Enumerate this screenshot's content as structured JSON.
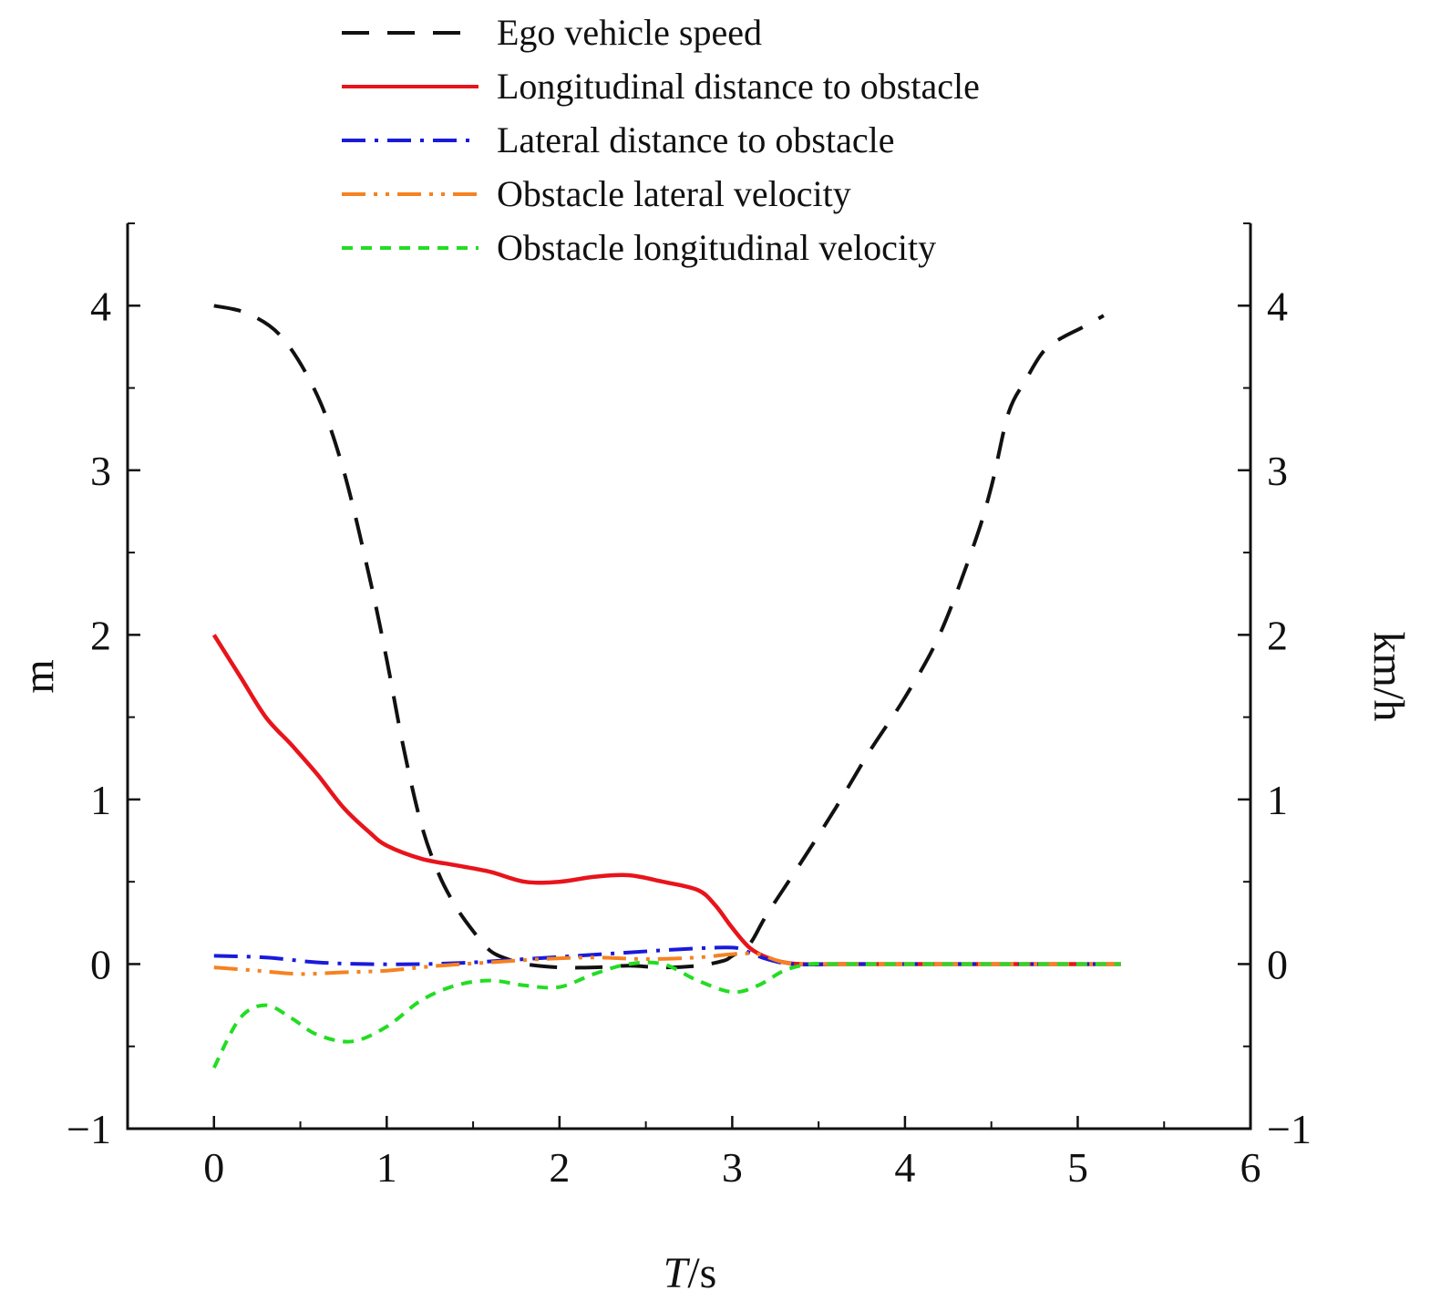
{
  "chart_data": {
    "type": "line",
    "title": "",
    "xlabel": {
      "italic": "T",
      "rest": "/s"
    },
    "ylabel_left": "m",
    "ylabel_right": "km/h",
    "xlim": [
      -0.5,
      6
    ],
    "ylim": [
      -1,
      4.5
    ],
    "x_ticks": [
      0,
      1,
      2,
      3,
      4,
      5,
      6
    ],
    "x_tick_labels": [
      "0",
      "1",
      "2",
      "3",
      "4",
      "5",
      "6"
    ],
    "y_ticks": [
      -1,
      0,
      1,
      2,
      3,
      4
    ],
    "y_tick_labels": [
      "−1",
      "0",
      "1",
      "2",
      "3",
      "4"
    ],
    "legend_position": "top-center",
    "series": [
      {
        "name": "Ego vehicle speed",
        "color": "#111111",
        "style": "dashed",
        "x": [
          0,
          0.2,
          0.4,
          0.6,
          0.75,
          0.9,
          1.0,
          1.1,
          1.2,
          1.3,
          1.4,
          1.5,
          1.6,
          1.7,
          1.8,
          2.0,
          2.2,
          2.4,
          2.6,
          2.8,
          2.95,
          3.0,
          3.1,
          3.2,
          3.4,
          3.6,
          3.8,
          4.0,
          4.2,
          4.4,
          4.5,
          4.6,
          4.7,
          4.8,
          4.9,
          5.05,
          5.15
        ],
        "values": [
          4.0,
          3.95,
          3.8,
          3.45,
          3.0,
          2.35,
          1.85,
          1.3,
          0.85,
          0.55,
          0.35,
          0.2,
          0.08,
          0.03,
          0.0,
          -0.02,
          -0.02,
          -0.01,
          -0.02,
          -0.01,
          0.02,
          0.05,
          0.12,
          0.3,
          0.62,
          0.95,
          1.3,
          1.62,
          2.0,
          2.55,
          2.9,
          3.35,
          3.55,
          3.72,
          3.8,
          3.88,
          3.94
        ]
      },
      {
        "name": "Longitudinal distance to obstacle",
        "color": "#e8141b",
        "style": "solid",
        "x": [
          0,
          0.15,
          0.3,
          0.45,
          0.6,
          0.75,
          0.9,
          1.0,
          1.2,
          1.4,
          1.6,
          1.8,
          2.0,
          2.2,
          2.4,
          2.6,
          2.8,
          2.9,
          3.0,
          3.1,
          3.2,
          3.3,
          3.4,
          3.6,
          4.0,
          4.5,
          5.0,
          5.25
        ],
        "values": [
          2.0,
          1.75,
          1.5,
          1.33,
          1.15,
          0.95,
          0.8,
          0.72,
          0.64,
          0.6,
          0.56,
          0.5,
          0.5,
          0.53,
          0.54,
          0.5,
          0.45,
          0.36,
          0.22,
          0.1,
          0.04,
          0.01,
          0.0,
          0.0,
          0.0,
          0.0,
          0.0,
          0.0
        ]
      },
      {
        "name": "Lateral distance to obstacle",
        "color": "#1a1adb",
        "style": "dashdot",
        "x": [
          0,
          0.3,
          0.6,
          0.9,
          1.2,
          1.5,
          1.8,
          2.1,
          2.4,
          2.7,
          3.0,
          3.1,
          3.2,
          3.35,
          3.6,
          4.0,
          4.5,
          5.0,
          5.25
        ],
        "values": [
          0.05,
          0.04,
          0.01,
          0.0,
          0.0,
          0.01,
          0.03,
          0.05,
          0.07,
          0.09,
          0.1,
          0.07,
          0.03,
          0.0,
          0.0,
          0.0,
          0.0,
          0.0,
          0.0
        ]
      },
      {
        "name": "Obstacle lateral velocity",
        "color": "#f58220",
        "style": "dashdotdot",
        "x": [
          0,
          0.25,
          0.5,
          0.75,
          1.0,
          1.3,
          1.6,
          1.9,
          2.2,
          2.5,
          2.8,
          3.0,
          3.15,
          3.3,
          3.5,
          4.0,
          4.5,
          5.0,
          5.25
        ],
        "values": [
          -0.02,
          -0.04,
          -0.06,
          -0.05,
          -0.04,
          -0.01,
          0.01,
          0.03,
          0.04,
          0.03,
          0.04,
          0.06,
          0.06,
          0.01,
          0.0,
          0.0,
          0.0,
          0.0,
          0.0
        ]
      },
      {
        "name": "Obstacle longitudinal velocity",
        "color": "#22dd22",
        "style": "dotted",
        "x": [
          0,
          0.15,
          0.3,
          0.45,
          0.6,
          0.8,
          1.0,
          1.2,
          1.4,
          1.6,
          1.8,
          2.0,
          2.2,
          2.4,
          2.6,
          2.8,
          3.0,
          3.15,
          3.3,
          3.45,
          3.6,
          4.0,
          4.5,
          5.0,
          5.25
        ],
        "values": [
          -0.63,
          -0.33,
          -0.25,
          -0.33,
          -0.43,
          -0.47,
          -0.38,
          -0.22,
          -0.13,
          -0.1,
          -0.13,
          -0.14,
          -0.06,
          0.0,
          0.0,
          -0.1,
          -0.17,
          -0.13,
          -0.04,
          0.0,
          0.0,
          0.0,
          0.0,
          0.0,
          0.0
        ]
      }
    ]
  }
}
